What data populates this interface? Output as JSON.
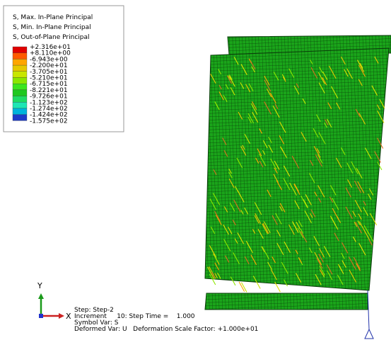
{
  "legend": {
    "titles": [
      "S, Max. In-Plane Principal",
      "S, Min. In-Plane Principal",
      "S, Out-of-Plane Principal"
    ],
    "values": [
      "+2.316e+01",
      "+8.110e+00",
      "-6.943e+00",
      "-2.200e+01",
      "-3.705e+01",
      "-5.210e+01",
      "-6.715e+01",
      "-8.221e+01",
      "-9.726e+01",
      "-1.123e+02",
      "-1.274e+02",
      "-1.424e+02",
      "-1.575e+02"
    ]
  },
  "triad": {
    "y": "Y",
    "x": "X"
  },
  "info": [
    "Step: Step-2",
    "Increment     10: Step Time =    1.000",
    "Symbol Var: S",
    "Deformed Var: U   Deformation Scale Factor: +1.000e+01"
  ]
}
